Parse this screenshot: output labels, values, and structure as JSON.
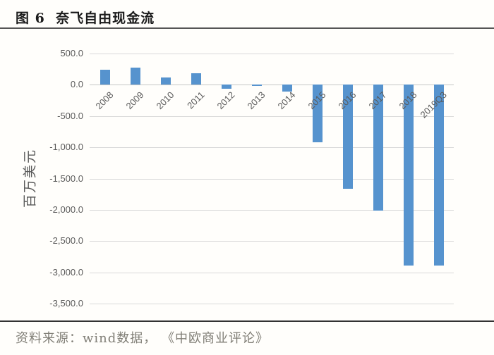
{
  "header": {
    "title": "图 6  奈飞自由现金流"
  },
  "footer": {
    "source": "资料来源：wind数据， 《中欧商业评论》"
  },
  "chart_data": {
    "type": "bar",
    "title": "奈飞自由现金流",
    "xlabel": "",
    "ylabel": "百万美元",
    "categories": [
      "2008",
      "2009",
      "2010",
      "2011",
      "2012",
      "2013",
      "2014",
      "2015",
      "2016",
      "2017",
      "2018",
      "2019Q3"
    ],
    "values": [
      240,
      280,
      120,
      180,
      -60,
      -20,
      -110,
      -920,
      -1660,
      -2010,
      -2890,
      -2890
    ],
    "ylim": [
      -3500,
      500
    ],
    "yticks": [
      500,
      0,
      -500,
      -1000,
      -1500,
      -2000,
      -2500,
      -3000,
      -3500
    ],
    "ytick_labels": [
      "500.0",
      "0.0",
      "-500.0",
      "-1,000.0",
      "-1,500.0",
      "-2,000.0",
      "-2,500.0",
      "-3,000.0",
      "-3,500.0"
    ],
    "bar_color": "#5693ce",
    "grid": true,
    "legend": false,
    "x_label_rotation_deg": 45
  }
}
